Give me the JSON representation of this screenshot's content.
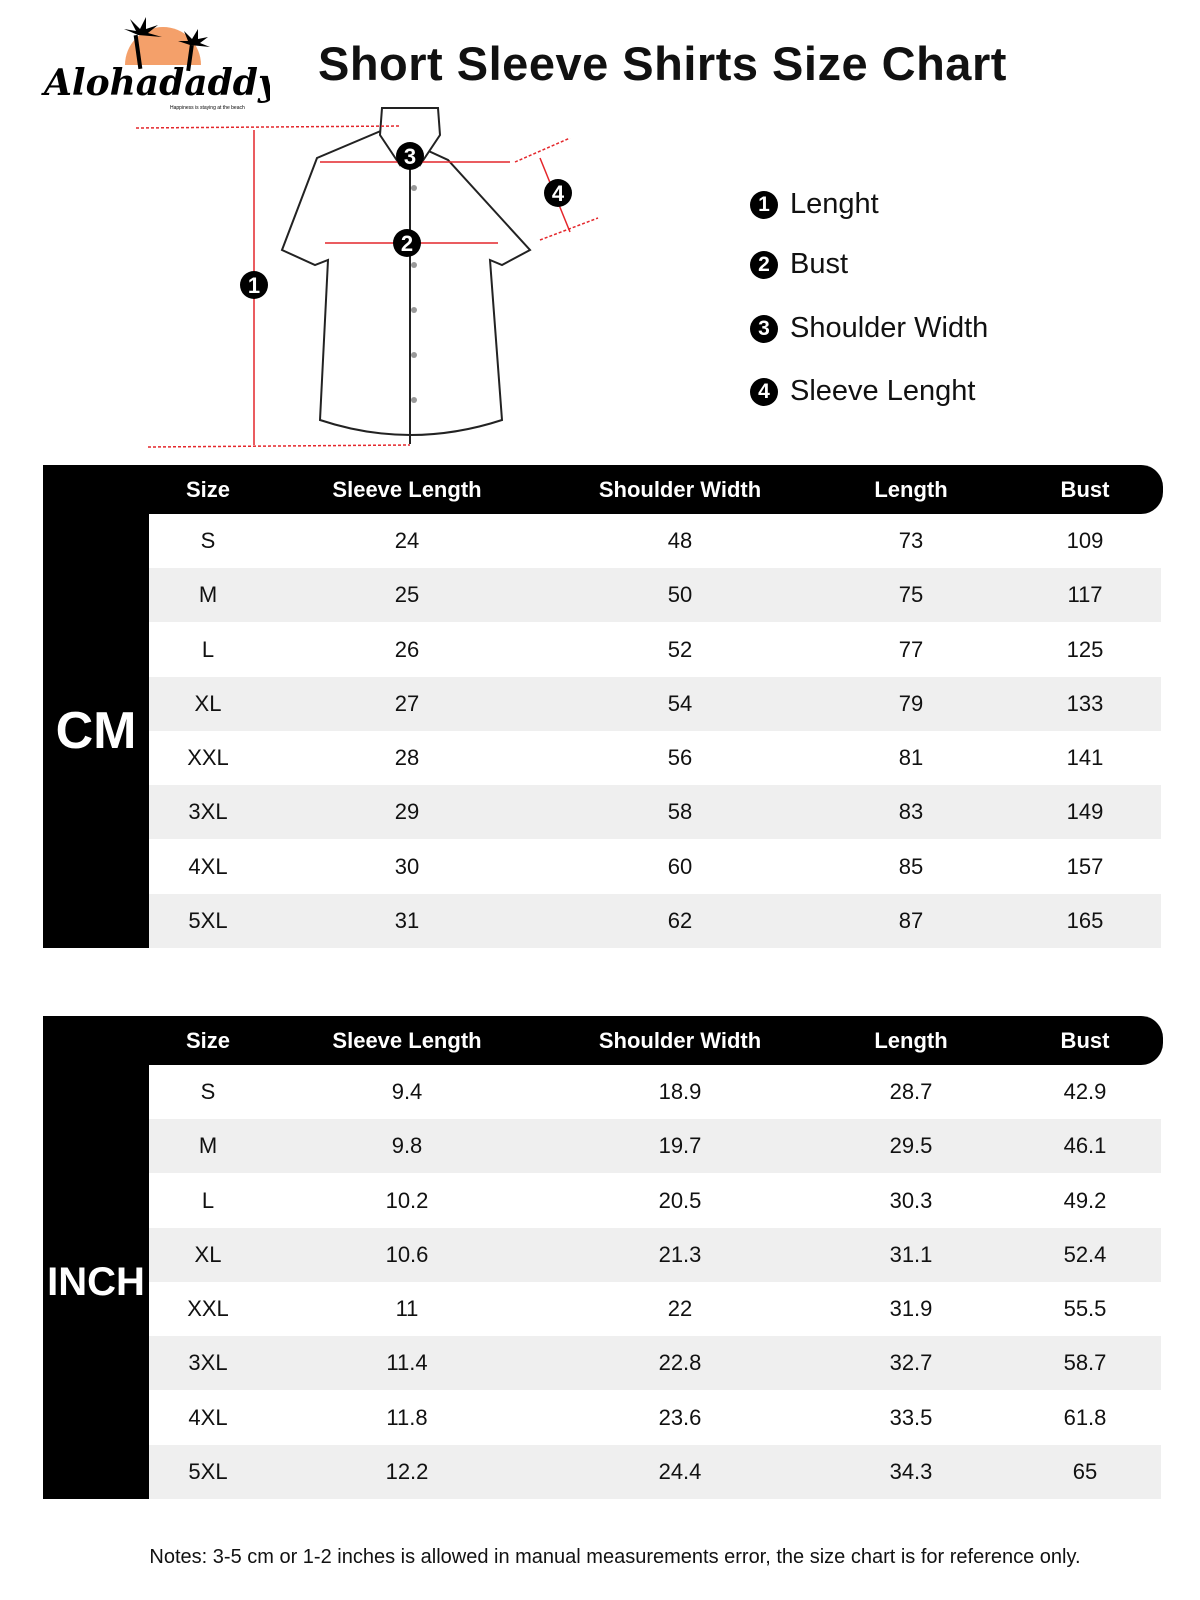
{
  "brand": {
    "name": "Alohadaddy",
    "tagline": "Happiness is staying at the beach",
    "sun_color": "#f4a06a"
  },
  "title": "Short Sleeve Shirts Size Chart",
  "diagram": {
    "markers": [
      "1",
      "2",
      "3",
      "4"
    ],
    "arrow_color": "#e4262b"
  },
  "legend": [
    {
      "num": "1",
      "label": "Lenght"
    },
    {
      "num": "2",
      "label": "Bust"
    },
    {
      "num": "3",
      "label": "Shoulder Width"
    },
    {
      "num": "4",
      "label": "Sleeve Lenght"
    }
  ],
  "columns": [
    "Size",
    "Sleeve Length",
    "Shoulder Width",
    "Length",
    "Bust"
  ],
  "tables": [
    {
      "unit": "CM",
      "rows": [
        [
          "S",
          "24",
          "48",
          "73",
          "109"
        ],
        [
          "M",
          "25",
          "50",
          "75",
          "117"
        ],
        [
          "L",
          "26",
          "52",
          "77",
          "125"
        ],
        [
          "XL",
          "27",
          "54",
          "79",
          "133"
        ],
        [
          "XXL",
          "28",
          "56",
          "81",
          "141"
        ],
        [
          "3XL",
          "29",
          "58",
          "83",
          "149"
        ],
        [
          "4XL",
          "30",
          "60",
          "85",
          "157"
        ],
        [
          "5XL",
          "31",
          "62",
          "87",
          "165"
        ]
      ]
    },
    {
      "unit": "INCH",
      "rows": [
        [
          "S",
          "9.4",
          "18.9",
          "28.7",
          "42.9"
        ],
        [
          "M",
          "9.8",
          "19.7",
          "29.5",
          "46.1"
        ],
        [
          "L",
          "10.2",
          "20.5",
          "30.3",
          "49.2"
        ],
        [
          "XL",
          "10.6",
          "21.3",
          "31.1",
          "52.4"
        ],
        [
          "XXL",
          "11",
          "22",
          "31.9",
          "55.5"
        ],
        [
          "3XL",
          "11.4",
          "22.8",
          "32.7",
          "58.7"
        ],
        [
          "4XL",
          "11.8",
          "23.6",
          "33.5",
          "61.8"
        ],
        [
          "5XL",
          "12.2",
          "24.4",
          "34.3",
          "65"
        ]
      ]
    }
  ],
  "notes": "Notes: 3-5 cm or 1-2 inches is allowed in manual measurements error, the size chart is for reference only."
}
